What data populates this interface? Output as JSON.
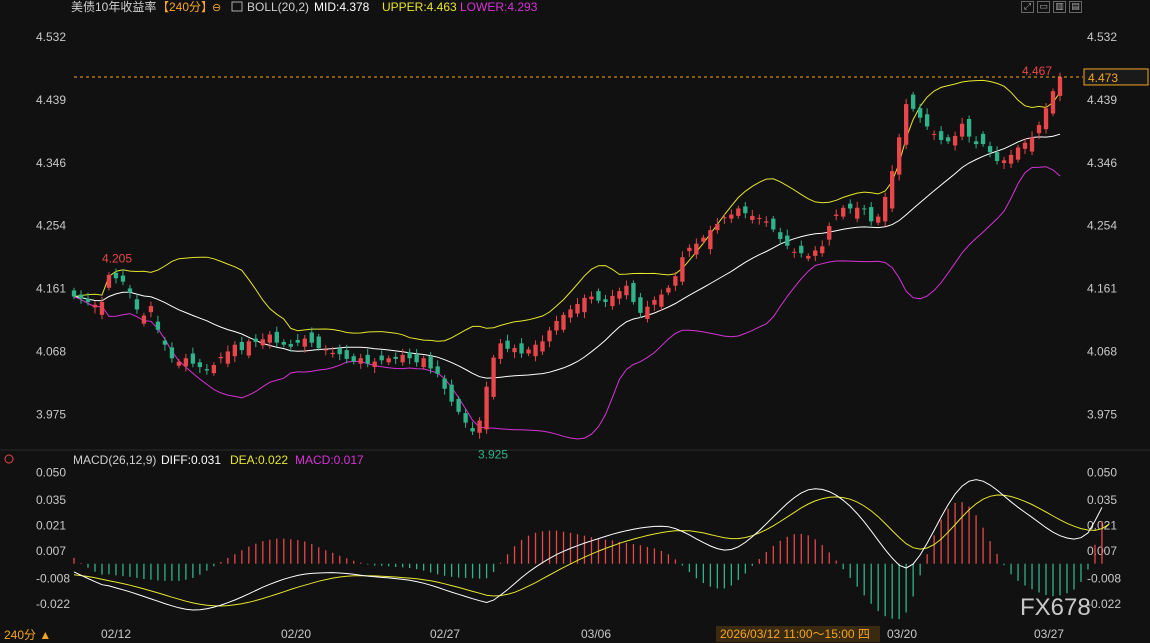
{
  "header": {
    "title": "美债10年收益率",
    "period": "【240分】",
    "indicator": "BOLL(20,2)",
    "mid": "MID:4.378",
    "upper": "UPPER:4.463",
    "lower": "LOWER:4.293"
  },
  "macd_header": {
    "name": "MACD(26,12,9)",
    "diff": "DIFF:0.031",
    "dea": "DEA:0.022",
    "macd": "MACD:0.017"
  },
  "period_button": "240分 ▲",
  "watermark": "FX678",
  "crosshair_label": "2026/03/12 11:00～15:00 四",
  "colors": {
    "up": "#e8464a",
    "down": "#2fb38a",
    "upper": "#e6e62e",
    "mid": "#ffffff",
    "lower": "#d633d6",
    "bg": "#111111",
    "price_line": "#f5a623"
  },
  "chart_data": [
    {
      "type": "candlestick",
      "ylim": [
        3.93,
        4.56
      ],
      "yticks": [
        "4.532",
        "4.439",
        "4.346",
        "4.254",
        "4.161",
        "4.068",
        "3.975"
      ],
      "x_labels": [
        "02/12",
        "02/20",
        "02/27",
        "03/06",
        "03/20",
        "03/27"
      ],
      "annotations": {
        "high": "4.205",
        "low": "3.925",
        "last_high": "4.467",
        "current_price": "4.473"
      },
      "close": [
        4.149,
        4.146,
        4.141,
        4.137,
        4.141,
        4.181,
        4.176,
        4.171,
        4.155,
        4.13,
        4.121,
        4.135,
        4.1,
        4.078,
        4.058,
        4.053,
        4.058,
        4.05,
        4.045,
        4.04,
        4.048,
        4.06,
        4.068,
        4.078,
        4.07,
        4.083,
        4.082,
        4.086,
        4.093,
        4.081,
        4.078,
        4.075,
        4.081,
        4.087,
        4.081,
        4.073,
        4.071,
        4.066,
        4.064,
        4.057,
        4.053,
        4.058,
        4.05,
        4.053,
        4.055,
        4.058,
        4.057,
        4.063,
        4.058,
        4.052,
        4.058,
        4.043,
        4.035,
        4.013,
        3.994,
        3.979,
        3.963,
        3.95,
        3.966,
        4.016,
        4.059,
        4.08,
        4.072,
        4.073,
        4.065,
        4.071,
        4.078,
        4.083,
        4.099,
        4.113,
        4.122,
        4.13,
        4.138,
        4.147,
        4.149,
        4.143,
        4.141,
        4.15,
        4.157,
        4.165,
        4.141,
        4.125,
        4.134,
        4.144,
        4.152,
        4.162,
        4.179,
        4.207,
        4.221,
        4.227,
        4.236,
        4.247,
        4.256,
        4.266,
        4.27,
        4.279,
        4.272,
        4.268,
        4.265,
        4.26,
        4.248,
        4.234,
        4.224,
        4.215,
        4.213,
        4.209,
        4.217,
        4.223,
        4.253,
        4.27,
        4.28,
        4.279,
        4.28,
        4.278,
        4.26,
        4.267,
        4.296,
        4.334,
        4.384,
        4.433,
        4.426,
        4.413,
        4.4,
        4.389,
        4.38,
        4.378,
        4.386,
        4.404,
        4.385,
        4.374,
        4.374,
        4.362,
        4.349,
        4.35,
        4.358,
        4.369,
        4.376,
        4.384,
        4.402,
        4.427,
        4.452,
        4.473
      ],
      "open": [
        4.158,
        4.152,
        4.146,
        4.133,
        4.122,
        4.162,
        4.184,
        4.18,
        4.161,
        4.145,
        4.109,
        4.126,
        4.112,
        4.084,
        4.074,
        4.047,
        4.046,
        4.065,
        4.052,
        4.042,
        4.036,
        4.058,
        4.05,
        4.061,
        4.082,
        4.062,
        4.087,
        4.077,
        4.081,
        4.097,
        4.082,
        4.079,
        4.085,
        4.075,
        4.096,
        4.09,
        4.07,
        4.064,
        4.073,
        4.07,
        4.061,
        4.05,
        4.063,
        4.045,
        4.062,
        4.052,
        4.06,
        4.052,
        4.067,
        4.064,
        4.045,
        4.061,
        4.046,
        4.028,
        4.019,
        3.998,
        3.977,
        3.955,
        3.948,
        3.953,
        4.001,
        4.057,
        4.084,
        4.067,
        4.08,
        4.065,
        4.061,
        4.068,
        4.083,
        4.099,
        4.1,
        4.118,
        4.124,
        4.126,
        4.145,
        4.157,
        4.145,
        4.135,
        4.146,
        4.151,
        4.169,
        4.148,
        4.116,
        4.137,
        4.134,
        4.155,
        4.165,
        4.171,
        4.216,
        4.211,
        4.23,
        4.219,
        4.247,
        4.265,
        4.264,
        4.268,
        4.282,
        4.262,
        4.264,
        4.258,
        4.264,
        4.244,
        4.239,
        4.215,
        4.224,
        4.205,
        4.209,
        4.213,
        4.233,
        4.268,
        4.267,
        4.286,
        4.264,
        4.279,
        4.281,
        4.258,
        4.26,
        4.279,
        4.329,
        4.373,
        4.447,
        4.427,
        4.418,
        4.389,
        4.393,
        4.384,
        4.372,
        4.385,
        4.411,
        4.378,
        4.389,
        4.371,
        4.362,
        4.346,
        4.345,
        4.351,
        4.367,
        4.363,
        4.39,
        4.396,
        4.419,
        4.445
      ]
    },
    {
      "type": "bar+line",
      "name": "MACD",
      "ylim": [
        -0.032,
        0.052
      ],
      "yticks": [
        "0.050",
        "0.035",
        "0.021",
        "0.007",
        "-0.008",
        "-0.022"
      ],
      "x_labels": [
        "02/12",
        "02/20",
        "02/27",
        "03/06",
        "03/20",
        "03/27"
      ],
      "diff": [
        -0.0045,
        -0.0063,
        -0.0081,
        -0.0099,
        -0.0115,
        -0.0122,
        -0.0133,
        -0.0143,
        -0.0154,
        -0.0167,
        -0.018,
        -0.0193,
        -0.0206,
        -0.0219,
        -0.0231,
        -0.0242,
        -0.025,
        -0.0254,
        -0.0253,
        -0.0247,
        -0.0238,
        -0.0227,
        -0.0214,
        -0.0199,
        -0.0183,
        -0.0165,
        -0.0147,
        -0.0129,
        -0.0113,
        -0.0098,
        -0.0085,
        -0.0074,
        -0.0064,
        -0.0057,
        -0.0053,
        -0.0051,
        -0.005,
        -0.0049,
        -0.0051,
        -0.0054,
        -0.0058,
        -0.0063,
        -0.0068,
        -0.0072,
        -0.0075,
        -0.0078,
        -0.0082,
        -0.0086,
        -0.0091,
        -0.0098,
        -0.0107,
        -0.0118,
        -0.013,
        -0.0143,
        -0.0156,
        -0.0168,
        -0.018,
        -0.0192,
        -0.0203,
        -0.0213,
        -0.02,
        -0.0172,
        -0.0142,
        -0.0109,
        -0.0076,
        -0.0046,
        -0.0019,
        0.0006,
        0.0029,
        0.005,
        0.0068,
        0.0084,
        0.0099,
        0.0113,
        0.0126,
        0.0138,
        0.015,
        0.0162,
        0.0172,
        0.0181,
        0.0189,
        0.0196,
        0.0201,
        0.0205,
        0.0206,
        0.0203,
        0.0193,
        0.0177,
        0.0158,
        0.0136,
        0.0116,
        0.0097,
        0.0083,
        0.0075,
        0.0078,
        0.0093,
        0.0117,
        0.0148,
        0.0182,
        0.0219,
        0.0257,
        0.0295,
        0.0331,
        0.0363,
        0.0389,
        0.0406,
        0.0412,
        0.0408,
        0.0396,
        0.0376,
        0.0348,
        0.0315,
        0.0275,
        0.023,
        0.018,
        0.0128,
        0.0077,
        0.0031,
        -0.0008,
        -0.0024,
        -0.0002,
        0.0048,
        0.0112,
        0.0183,
        0.0256,
        0.0324,
        0.0382,
        0.0426,
        0.0453,
        0.0462,
        0.0453,
        0.0432,
        0.0404,
        0.0372,
        0.034,
        0.031,
        0.0282,
        0.0255,
        0.0226,
        0.0198,
        0.0173,
        0.0154,
        0.0141,
        0.0135,
        0.0143,
        0.0169,
        0.0235,
        0.031
      ],
      "dea": [
        -0.0061,
        -0.0065,
        -0.007,
        -0.0077,
        -0.0085,
        -0.0093,
        -0.0101,
        -0.0109,
        -0.0118,
        -0.0128,
        -0.0138,
        -0.0149,
        -0.016,
        -0.0172,
        -0.0184,
        -0.0195,
        -0.0206,
        -0.0215,
        -0.0223,
        -0.0228,
        -0.0231,
        -0.0232,
        -0.023,
        -0.0225,
        -0.022,
        -0.0212,
        -0.0202,
        -0.0191,
        -0.0179,
        -0.0167,
        -0.0154,
        -0.0141,
        -0.0129,
        -0.0118,
        -0.0107,
        -0.0096,
        -0.0087,
        -0.0079,
        -0.0073,
        -0.0069,
        -0.0066,
        -0.0066,
        -0.0066,
        -0.0067,
        -0.0069,
        -0.0071,
        -0.0073,
        -0.0076,
        -0.0079,
        -0.0083,
        -0.0088,
        -0.0094,
        -0.0101,
        -0.011,
        -0.012,
        -0.013,
        -0.0141,
        -0.0152,
        -0.0162,
        -0.0173,
        -0.0177,
        -0.0175,
        -0.0168,
        -0.0157,
        -0.0141,
        -0.0123,
        -0.0104,
        -0.0083,
        -0.0062,
        -0.0041,
        -0.002,
        -0.0001,
        0.0018,
        0.0036,
        0.0053,
        0.0069,
        0.0084,
        0.0098,
        0.0112,
        0.0124,
        0.0135,
        0.0145,
        0.0155,
        0.0163,
        0.0171,
        0.0177,
        0.0181,
        0.0182,
        0.0181,
        0.0176,
        0.0169,
        0.016,
        0.0151,
        0.0143,
        0.0138,
        0.0138,
        0.0144,
        0.0154,
        0.0169,
        0.0187,
        0.0208,
        0.0232,
        0.0257,
        0.0282,
        0.0307,
        0.0328,
        0.0345,
        0.0357,
        0.0365,
        0.0367,
        0.0363,
        0.0354,
        0.0338,
        0.0317,
        0.029,
        0.0258,
        0.0221,
        0.0182,
        0.0144,
        0.011,
        0.0088,
        0.008,
        0.0086,
        0.0105,
        0.0135,
        0.0173,
        0.0215,
        0.0257,
        0.0296,
        0.0329,
        0.0354,
        0.037,
        0.0377,
        0.0376,
        0.0369,
        0.0357,
        0.0342,
        0.0325,
        0.0305,
        0.0284,
        0.0262,
        0.0241,
        0.0222,
        0.0206,
        0.0193,
        0.0185,
        0.0183,
        0.0193,
        0.0217
      ]
    }
  ]
}
